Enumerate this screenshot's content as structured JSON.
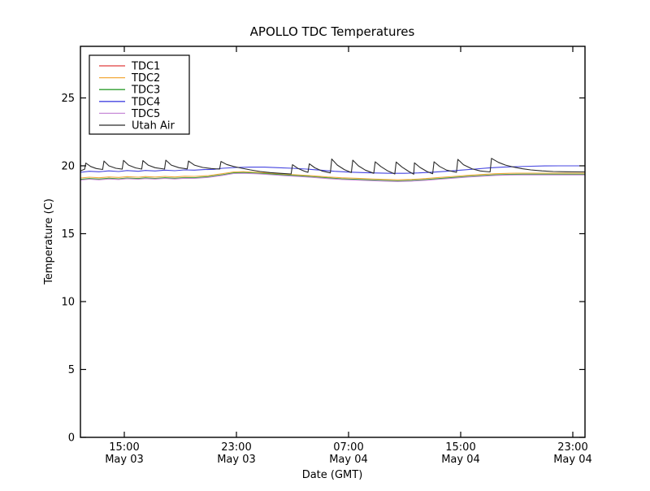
{
  "title": "APOLLO TDC Temperatures",
  "colors": {
    "background": "#ffffff",
    "axis": "#000000",
    "tdc1": "#e03c3c",
    "tdc2": "#f2a93b",
    "tdc3": "#2f9e2f",
    "tdc4": "#4444e0",
    "tdc5": "#c88bd8",
    "utah_air": "#2b2b2b"
  },
  "chart_data": {
    "type": "line",
    "title": "APOLLO TDC Temperatures",
    "xlabel": "Date (GMT)",
    "ylabel": "Temperature (C)",
    "grid": false,
    "legend_position": "upper left",
    "xlim": [
      -0.13,
      35.87
    ],
    "ylim": [
      0,
      28.8
    ],
    "x_hours_origin": "12:00 May 03",
    "x_ticks": [
      {
        "x": 3,
        "time": "15:00",
        "date": "May 03"
      },
      {
        "x": 11,
        "time": "23:00",
        "date": "May 03"
      },
      {
        "x": 19,
        "time": "07:00",
        "date": "May 04"
      },
      {
        "x": 27,
        "time": "15:00",
        "date": "May 04"
      },
      {
        "x": 35,
        "time": "23:00",
        "date": "May 04"
      }
    ],
    "y_ticks": [
      0,
      5,
      10,
      15,
      20,
      25
    ],
    "series": [
      {
        "name": "TDC1",
        "color": "#e03c3c",
        "points": [
          [
            -0.13,
            18.98
          ],
          [
            0.5,
            19.04
          ],
          [
            1.2,
            19.0
          ],
          [
            1.9,
            19.06
          ],
          [
            2.6,
            19.02
          ],
          [
            3.2,
            19.08
          ],
          [
            4.0,
            19.04
          ],
          [
            4.5,
            19.09
          ],
          [
            5.2,
            19.05
          ],
          [
            5.9,
            19.1
          ],
          [
            6.6,
            19.06
          ],
          [
            7.3,
            19.11
          ],
          [
            8.0,
            19.1
          ],
          [
            9.0,
            19.18
          ],
          [
            10.0,
            19.32
          ],
          [
            10.8,
            19.46
          ],
          [
            11.5,
            19.48
          ],
          [
            12.5,
            19.44
          ],
          [
            13.5,
            19.37
          ],
          [
            14.5,
            19.3
          ],
          [
            15.5,
            19.24
          ],
          [
            16.5,
            19.17
          ],
          [
            17.5,
            19.09
          ],
          [
            18.5,
            19.02
          ],
          [
            19.5,
            18.98
          ],
          [
            20.5,
            18.94
          ],
          [
            21.5,
            18.9
          ],
          [
            22.5,
            18.87
          ],
          [
            23.5,
            18.9
          ],
          [
            24.5,
            18.96
          ],
          [
            25.5,
            19.04
          ],
          [
            26.5,
            19.12
          ],
          [
            27.5,
            19.2
          ],
          [
            28.5,
            19.26
          ],
          [
            29.5,
            19.32
          ],
          [
            30.5,
            19.35
          ],
          [
            31.5,
            19.36
          ],
          [
            33.0,
            19.36
          ],
          [
            35.87,
            19.36
          ]
        ]
      },
      {
        "name": "TDC2",
        "color": "#f2a93b",
        "points": [
          [
            -0.13,
            19.1
          ],
          [
            0.5,
            19.16
          ],
          [
            1.2,
            19.12
          ],
          [
            1.9,
            19.18
          ],
          [
            2.6,
            19.14
          ],
          [
            3.2,
            19.2
          ],
          [
            4.0,
            19.16
          ],
          [
            4.5,
            19.21
          ],
          [
            5.2,
            19.17
          ],
          [
            5.9,
            19.22
          ],
          [
            6.6,
            19.18
          ],
          [
            7.3,
            19.23
          ],
          [
            8.0,
            19.22
          ],
          [
            9.0,
            19.28
          ],
          [
            10.0,
            19.42
          ],
          [
            10.8,
            19.55
          ],
          [
            11.5,
            19.57
          ],
          [
            12.5,
            19.52
          ],
          [
            13.5,
            19.45
          ],
          [
            14.5,
            19.38
          ],
          [
            15.5,
            19.32
          ],
          [
            16.5,
            19.26
          ],
          [
            17.5,
            19.18
          ],
          [
            18.5,
            19.12
          ],
          [
            19.5,
            19.08
          ],
          [
            20.5,
            19.04
          ],
          [
            21.5,
            19.0
          ],
          [
            22.5,
            18.97
          ],
          [
            23.5,
            19.0
          ],
          [
            24.5,
            19.06
          ],
          [
            25.5,
            19.14
          ],
          [
            26.5,
            19.22
          ],
          [
            27.5,
            19.3
          ],
          [
            28.5,
            19.36
          ],
          [
            29.5,
            19.42
          ],
          [
            30.5,
            19.45
          ],
          [
            31.5,
            19.46
          ],
          [
            33.0,
            19.46
          ],
          [
            35.87,
            19.46
          ]
        ]
      },
      {
        "name": "TDC3",
        "color": "#2f9e2f",
        "points": [
          [
            -0.13,
            19.0
          ],
          [
            0.5,
            19.06
          ],
          [
            1.2,
            19.02
          ],
          [
            1.9,
            19.08
          ],
          [
            2.6,
            19.04
          ],
          [
            3.2,
            19.1
          ],
          [
            4.0,
            19.06
          ],
          [
            4.5,
            19.11
          ],
          [
            5.2,
            19.07
          ],
          [
            5.9,
            19.12
          ],
          [
            6.6,
            19.08
          ],
          [
            7.3,
            19.13
          ],
          [
            8.0,
            19.12
          ],
          [
            9.0,
            19.2
          ],
          [
            10.0,
            19.34
          ],
          [
            10.8,
            19.48
          ],
          [
            11.5,
            19.5
          ],
          [
            12.5,
            19.46
          ],
          [
            13.5,
            19.39
          ],
          [
            14.5,
            19.32
          ],
          [
            15.5,
            19.26
          ],
          [
            16.5,
            19.19
          ],
          [
            17.5,
            19.11
          ],
          [
            18.5,
            19.04
          ],
          [
            19.5,
            19.0
          ],
          [
            20.5,
            18.96
          ],
          [
            21.5,
            18.92
          ],
          [
            22.5,
            18.89
          ],
          [
            23.5,
            18.92
          ],
          [
            24.5,
            18.98
          ],
          [
            25.5,
            19.06
          ],
          [
            26.5,
            19.14
          ],
          [
            27.5,
            19.22
          ],
          [
            28.5,
            19.28
          ],
          [
            29.5,
            19.34
          ],
          [
            30.5,
            19.37
          ],
          [
            31.5,
            19.38
          ],
          [
            33.0,
            19.38
          ],
          [
            35.87,
            19.38
          ]
        ]
      },
      {
        "name": "TDC4",
        "color": "#4444e0",
        "points": [
          [
            -0.13,
            19.52
          ],
          [
            0.5,
            19.6
          ],
          [
            1.2,
            19.56
          ],
          [
            1.9,
            19.63
          ],
          [
            2.6,
            19.58
          ],
          [
            3.2,
            19.65
          ],
          [
            4.0,
            19.6
          ],
          [
            4.5,
            19.66
          ],
          [
            5.2,
            19.62
          ],
          [
            5.9,
            19.68
          ],
          [
            6.6,
            19.64
          ],
          [
            7.3,
            19.7
          ],
          [
            8.0,
            19.68
          ],
          [
            8.7,
            19.72
          ],
          [
            9.4,
            19.74
          ],
          [
            10.0,
            19.82
          ],
          [
            11.0,
            19.88
          ],
          [
            12.0,
            19.9
          ],
          [
            13.0,
            19.9
          ],
          [
            14.0,
            19.86
          ],
          [
            15.0,
            19.82
          ],
          [
            16.0,
            19.76
          ],
          [
            17.0,
            19.68
          ],
          [
            18.0,
            19.6
          ],
          [
            19.0,
            19.54
          ],
          [
            20.0,
            19.5
          ],
          [
            21.0,
            19.47
          ],
          [
            22.0,
            19.45
          ],
          [
            23.0,
            19.45
          ],
          [
            24.0,
            19.48
          ],
          [
            25.0,
            19.53
          ],
          [
            26.0,
            19.6
          ],
          [
            27.0,
            19.68
          ],
          [
            28.0,
            19.76
          ],
          [
            29.0,
            19.84
          ],
          [
            30.0,
            19.9
          ],
          [
            31.0,
            19.94
          ],
          [
            32.0,
            19.97
          ],
          [
            33.0,
            19.99
          ],
          [
            34.0,
            20.0
          ],
          [
            35.87,
            20.0
          ]
        ]
      },
      {
        "name": "TDC5",
        "color": "#c88bd8",
        "points": [
          [
            -0.13,
            18.95
          ],
          [
            0.5,
            19.01
          ],
          [
            1.2,
            18.97
          ],
          [
            1.9,
            19.03
          ],
          [
            2.6,
            18.99
          ],
          [
            3.2,
            19.05
          ],
          [
            4.0,
            19.01
          ],
          [
            4.5,
            19.06
          ],
          [
            5.2,
            19.02
          ],
          [
            5.9,
            19.07
          ],
          [
            6.6,
            19.03
          ],
          [
            7.3,
            19.08
          ],
          [
            8.0,
            19.07
          ],
          [
            9.0,
            19.15
          ],
          [
            10.0,
            19.29
          ],
          [
            10.8,
            19.43
          ],
          [
            11.5,
            19.45
          ],
          [
            12.5,
            19.41
          ],
          [
            13.5,
            19.34
          ],
          [
            14.5,
            19.27
          ],
          [
            15.5,
            19.21
          ],
          [
            16.5,
            19.14
          ],
          [
            17.5,
            19.06
          ],
          [
            18.5,
            18.99
          ],
          [
            19.5,
            18.95
          ],
          [
            20.5,
            18.91
          ],
          [
            21.5,
            18.87
          ],
          [
            22.5,
            18.84
          ],
          [
            23.5,
            18.87
          ],
          [
            24.5,
            18.93
          ],
          [
            25.5,
            19.01
          ],
          [
            26.5,
            19.09
          ],
          [
            27.5,
            19.17
          ],
          [
            28.5,
            19.23
          ],
          [
            29.5,
            19.29
          ],
          [
            30.5,
            19.32
          ],
          [
            31.5,
            19.33
          ],
          [
            33.0,
            19.33
          ],
          [
            35.87,
            19.33
          ]
        ]
      },
      {
        "name": "Utah Air",
        "color": "#2b2b2b",
        "points": [
          [
            -0.13,
            19.62
          ],
          [
            0.17,
            19.75
          ],
          [
            0.25,
            20.2
          ],
          [
            0.6,
            19.95
          ],
          [
            1.0,
            19.8
          ],
          [
            1.45,
            19.73
          ],
          [
            1.55,
            20.35
          ],
          [
            1.9,
            20.0
          ],
          [
            2.4,
            19.82
          ],
          [
            2.85,
            19.75
          ],
          [
            2.94,
            20.4
          ],
          [
            3.3,
            20.05
          ],
          [
            3.8,
            19.85
          ],
          [
            4.24,
            19.76
          ],
          [
            4.33,
            20.38
          ],
          [
            4.7,
            20.05
          ],
          [
            5.2,
            19.86
          ],
          [
            5.87,
            19.76
          ],
          [
            5.96,
            20.42
          ],
          [
            6.35,
            20.05
          ],
          [
            6.9,
            19.86
          ],
          [
            7.49,
            19.77
          ],
          [
            7.58,
            20.35
          ],
          [
            8.0,
            20.05
          ],
          [
            8.6,
            19.88
          ],
          [
            9.2,
            19.8
          ],
          [
            9.8,
            19.76
          ],
          [
            9.9,
            20.32
          ],
          [
            10.3,
            20.1
          ],
          [
            10.8,
            19.95
          ],
          [
            11.4,
            19.82
          ],
          [
            12.0,
            19.7
          ],
          [
            12.7,
            19.58
          ],
          [
            13.4,
            19.5
          ],
          [
            14.1,
            19.45
          ],
          [
            14.9,
            19.4
          ],
          [
            15.0,
            20.08
          ],
          [
            15.4,
            19.8
          ],
          [
            15.8,
            19.62
          ],
          [
            16.1,
            19.52
          ],
          [
            16.2,
            20.15
          ],
          [
            16.6,
            19.85
          ],
          [
            17.1,
            19.62
          ],
          [
            17.7,
            19.48
          ],
          [
            17.8,
            20.5
          ],
          [
            18.2,
            20.05
          ],
          [
            18.7,
            19.72
          ],
          [
            19.2,
            19.5
          ],
          [
            19.3,
            20.42
          ],
          [
            19.7,
            20.0
          ],
          [
            20.2,
            19.68
          ],
          [
            20.8,
            19.45
          ],
          [
            20.9,
            20.3
          ],
          [
            21.3,
            19.95
          ],
          [
            21.8,
            19.62
          ],
          [
            22.3,
            19.4
          ],
          [
            22.4,
            20.28
          ],
          [
            22.8,
            19.92
          ],
          [
            23.3,
            19.58
          ],
          [
            23.65,
            19.38
          ],
          [
            23.7,
            20.22
          ],
          [
            24.1,
            19.88
          ],
          [
            24.6,
            19.58
          ],
          [
            25.0,
            19.42
          ],
          [
            25.1,
            20.3
          ],
          [
            25.5,
            19.95
          ],
          [
            26.0,
            19.68
          ],
          [
            26.7,
            19.52
          ],
          [
            26.8,
            20.48
          ],
          [
            27.2,
            20.08
          ],
          [
            27.8,
            19.78
          ],
          [
            28.4,
            19.62
          ],
          [
            29.1,
            19.55
          ],
          [
            29.2,
            20.55
          ],
          [
            29.7,
            20.25
          ],
          [
            30.2,
            20.05
          ],
          [
            30.8,
            19.9
          ],
          [
            31.4,
            19.78
          ],
          [
            32.0,
            19.7
          ],
          [
            32.8,
            19.63
          ],
          [
            33.6,
            19.58
          ],
          [
            34.5,
            19.56
          ],
          [
            35.87,
            19.55
          ]
        ]
      }
    ],
    "legend_entries": [
      "TDC1",
      "TDC2",
      "TDC3",
      "TDC4",
      "TDC5",
      "Utah Air"
    ]
  }
}
